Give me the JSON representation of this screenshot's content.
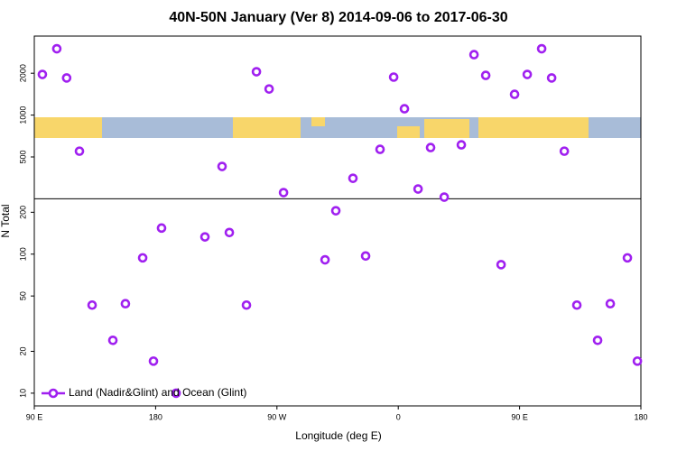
{
  "chart_data": {
    "type": "scatter",
    "title": "40N-50N January (Ver 8)   2014-09-06 to 2017-06-30",
    "x_label": "Longitude (deg E)",
    "y_label": "N Total",
    "log_y": true,
    "legend_position": "bottom-left",
    "xlim": [
      90,
      540
    ],
    "ylim": [
      8.1,
      3700
    ],
    "xticks": [
      {
        "value": 90,
        "label": "90 E"
      },
      180,
      {
        "value": 270,
        "label": "90 W"
      },
      {
        "value": 360,
        "label": "0"
      },
      {
        "value": 450,
        "label": "90 E"
      },
      {
        "value": 540,
        "label": "180"
      }
    ],
    "yticks": [
      10,
      20,
      50,
      100,
      200,
      500,
      1000,
      2000
    ],
    "hline": 250,
    "series": [
      {
        "name": "Land (Nadir&Glint) and Ocean (Glint)",
        "color": "#a020f0",
        "x": [
          96,
          106.7,
          114,
          123.5,
          132.9,
          148.3,
          157.6,
          170.4,
          178.4,
          184.4,
          195.2,
          216.6,
          229.3,
          234.7,
          247.4,
          254.8,
          264.2,
          274.9,
          305.7,
          313.7,
          326.4,
          335.8,
          346.5,
          356.6,
          364.6,
          374.7,
          384,
          394.1,
          406.8,
          416.2,
          424.9,
          436.3,
          446.3,
          455.7,
          466.4,
          473.8,
          483.2,
          492.5,
          507.9,
          517.3,
          530,
          537.4
        ],
        "values": [
          1960,
          3000,
          1850,
          550,
          43,
          24,
          44,
          94,
          17,
          154,
          10,
          133,
          427,
          143,
          43,
          2050,
          1540,
          277,
          91,
          205,
          351,
          97,
          567,
          1875,
          1110,
          294,
          584,
          257,
          611,
          2720,
          1930,
          84,
          1410,
          1960,
          3000,
          1850,
          550,
          43,
          24,
          44,
          94,
          17
        ]
      }
    ]
  }
}
